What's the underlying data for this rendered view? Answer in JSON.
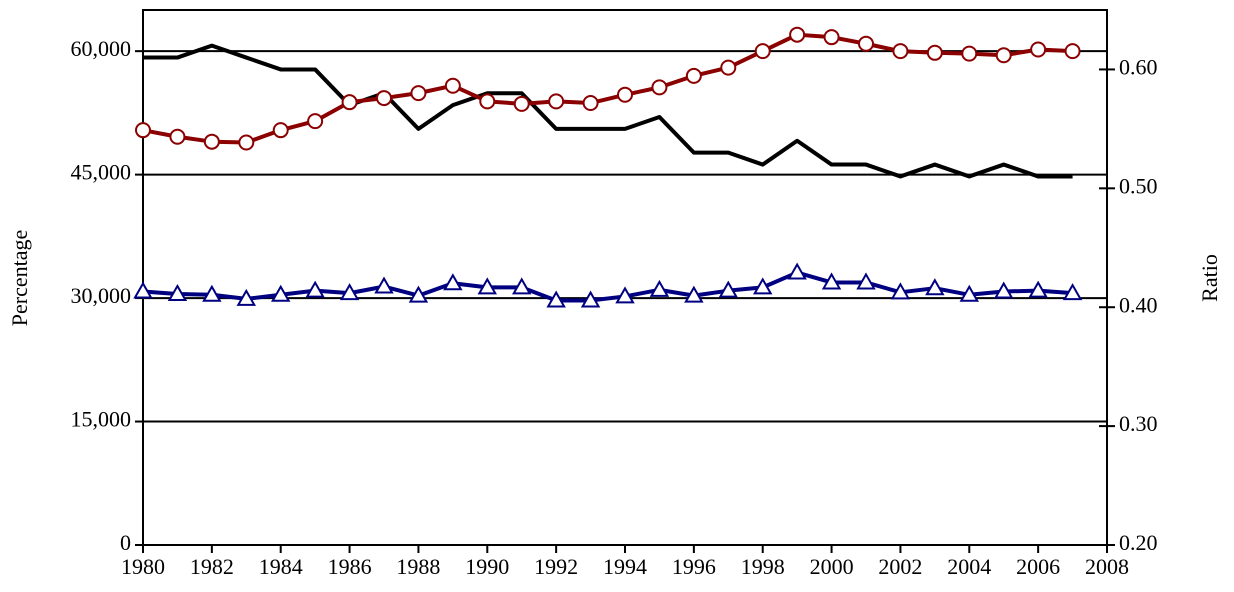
{
  "chart_data": {
    "type": "line",
    "y_label": "Percentage",
    "y2_label": "Ratio",
    "x": [
      1980,
      1981,
      1982,
      1983,
      1984,
      1985,
      1986,
      1987,
      1988,
      1989,
      1990,
      1991,
      1992,
      1993,
      1994,
      1995,
      1996,
      1997,
      1998,
      1999,
      2000,
      2001,
      2002,
      2003,
      2004,
      2005,
      2006,
      2007
    ],
    "xlim": [
      1980,
      2008
    ],
    "xticks": [
      1980,
      1982,
      1984,
      1986,
      1988,
      1990,
      1992,
      1994,
      1996,
      1998,
      2000,
      2002,
      2004,
      2006,
      2008
    ],
    "ylim": [
      0,
      65000
    ],
    "yticks": [
      0,
      {
        "value": 15000,
        "label": "15,000"
      },
      {
        "value": 30000,
        "label": "30,000"
      },
      {
        "value": 45000,
        "label": "45,000"
      },
      {
        "value": 60000,
        "label": "60,000"
      }
    ],
    "y2lim": [
      0.2,
      0.65
    ],
    "y2ticks": [
      {
        "value": 0.2,
        "label": "0.20"
      },
      {
        "value": 0.3,
        "label": "0.30"
      },
      {
        "value": 0.4,
        "label": "0.40"
      },
      {
        "value": 0.5,
        "label": "0.50"
      },
      {
        "value": 0.6,
        "label": "0.60"
      }
    ],
    "grid": true,
    "series": [
      {
        "color": "#000000",
        "marker": "none",
        "axis": "y2",
        "values": [
          0.61,
          0.61,
          0.62,
          0.61,
          0.6,
          0.6,
          0.57,
          0.58,
          0.55,
          0.57,
          0.58,
          0.58,
          0.55,
          0.55,
          0.55,
          0.56,
          0.53,
          0.53,
          0.52,
          0.54,
          0.52,
          0.52,
          0.51,
          0.52,
          0.51,
          0.52,
          0.51,
          0.51
        ]
      },
      {
        "color": "#8b0000",
        "marker": "circle",
        "values": [
          50400,
          49600,
          49000,
          48900,
          50400,
          51500,
          53800,
          54300,
          54900,
          55800,
          53900,
          53600,
          53900,
          53700,
          54700,
          55600,
          57000,
          58000,
          60000,
          62000,
          61700,
          60900,
          60000,
          59800,
          59700,
          59500,
          60200,
          60000
        ]
      },
      {
        "color": "#000080",
        "marker": "triangle",
        "values": [
          30800,
          30500,
          30400,
          29900,
          30400,
          30900,
          30600,
          31400,
          30300,
          31800,
          31300,
          31300,
          29700,
          29700,
          30200,
          31000,
          30300,
          30900,
          31300,
          33100,
          31900,
          31900,
          30700,
          31200,
          30400,
          30800,
          30900,
          30600
        ]
      }
    ]
  }
}
